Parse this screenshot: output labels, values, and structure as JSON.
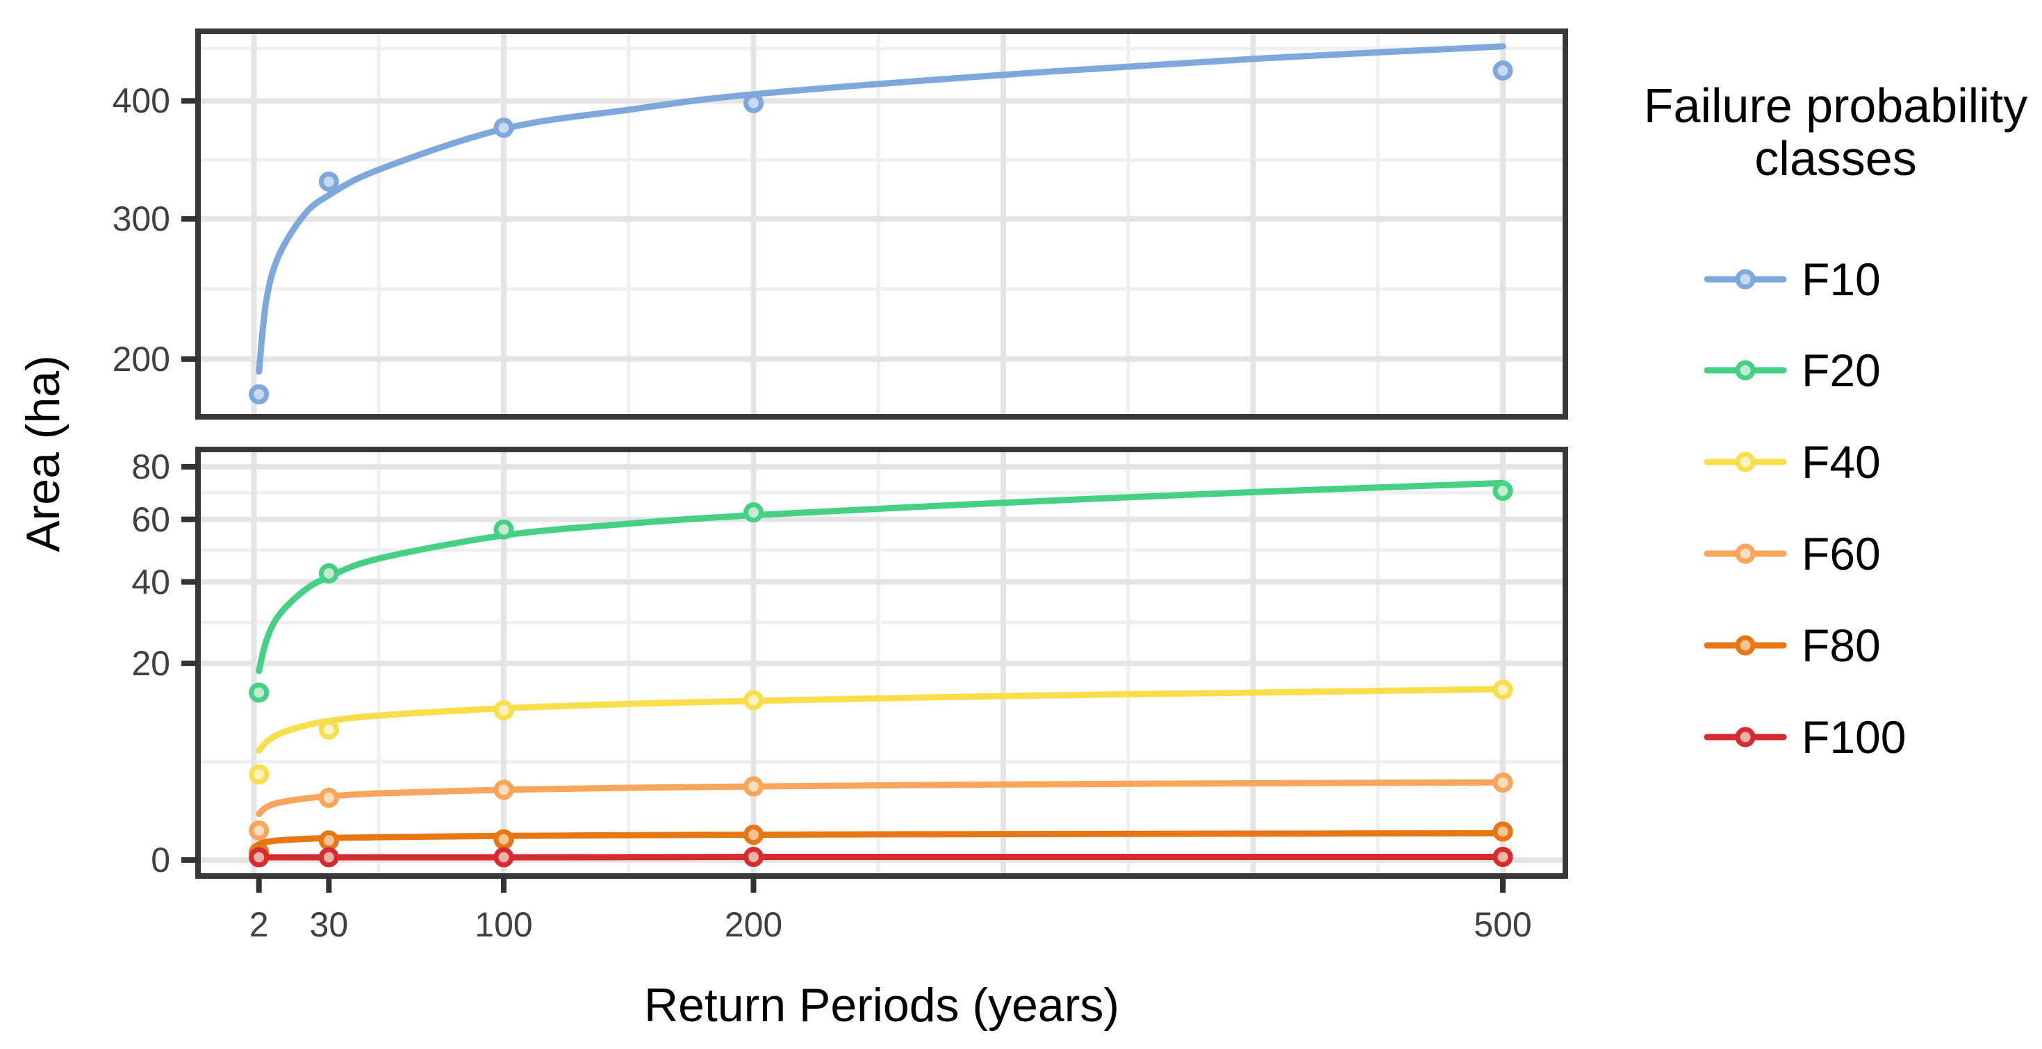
{
  "figure": {
    "background": "#ffffff"
  },
  "axes": {
    "x_title": "Return Periods (years)",
    "y_title": "Area (ha)",
    "x_tick_labels": [
      "2",
      "30",
      "100",
      "200",
      "500"
    ],
    "top_panel_y_tick_labels": [
      "200",
      "300",
      "400"
    ],
    "bottom_panel_y_tick_labels": [
      "0",
      "20",
      "40",
      "60",
      "80"
    ],
    "tick_color": "#333333",
    "border_color": "#383838",
    "grid_major_color": "#E4E4E4",
    "grid_minor_color": "#EFEFEF"
  },
  "legend": {
    "title_line1": "Failure probability",
    "title_line2": "classes",
    "entries": [
      {
        "label": "F10",
        "color": "#7EA7DC",
        "fill": "#C9D9F0"
      },
      {
        "label": "F20",
        "color": "#45D084",
        "fill": "#C2ECD2"
      },
      {
        "label": "F40",
        "color": "#F8DE4B",
        "fill": "#FBF2C4"
      },
      {
        "label": "F60",
        "color": "#F9A55B",
        "fill": "#FCDDBE"
      },
      {
        "label": "F80",
        "color": "#E77614",
        "fill": "#F5C493"
      },
      {
        "label": "F100",
        "color": "#D62C30",
        "fill": "#EFB2A8"
      }
    ]
  },
  "chart_data": {
    "type": "scatter",
    "smooth_lines": true,
    "x_scale": "linear",
    "y_scale": "sqrt",
    "grid": true,
    "legend_position": "right",
    "xlabel": "Return Periods (years)",
    "ylabel": "Area (ha)",
    "x": [
      2,
      30,
      100,
      200,
      500
    ],
    "x_axis_ticks": [
      2,
      30,
      100,
      200,
      500
    ],
    "x_grid_major": [
      0,
      100,
      200,
      300,
      400,
      500
    ],
    "x_grid_minor": [
      50,
      150,
      250,
      350,
      450
    ],
    "curve_x": [
      2,
      5,
      10,
      20,
      30,
      50,
      100,
      150,
      200,
      300,
      400,
      500
    ],
    "panels": [
      {
        "name": "top",
        "ylim": [
          160,
          466
        ],
        "y_ticks": [
          200,
          300,
          400
        ],
        "y_grid_minor": [
          247.5,
          348.2,
          448.9
        ],
        "series": [
          {
            "name": "F10",
            "color": "#7EA7DC",
            "fill": "#C9D9F0",
            "values": [
              178,
              330,
              376,
              398,
              428
            ],
            "curve_v": [
              192,
              240,
              272,
              303,
              319,
              340,
              375,
              392,
              406,
              424,
              439,
              451
            ]
          }
        ]
      },
      {
        "name": "bottom",
        "ylim": [
          0,
          88
        ],
        "y_ticks": [
          0,
          20,
          40,
          60,
          80
        ],
        "y_grid_minor": [
          5,
          29.2,
          49.7,
          69.8
        ],
        "series": [
          {
            "name": "F20",
            "color": "#45D084",
            "fill": "#C2ECD2",
            "values": [
              14.5,
              42.5,
              56.5,
              62.5,
              70.5
            ],
            "curve_v": [
              18.5,
              25,
              31,
              37.5,
              41.5,
              47,
              54.5,
              58.5,
              61.5,
              66,
              70,
              73.5
            ]
          },
          {
            "name": "F40",
            "color": "#F8DE4B",
            "fill": "#FBF2C4",
            "values": [
              3.8,
              8.8,
              11.6,
              13.2,
              15.0
            ],
            "curve_v": [
              6.2,
              7.2,
              8.2,
              9.3,
              10.0,
              10.8,
              11.9,
              12.6,
              13.1,
              13.9,
              14.5,
              15.1
            ]
          },
          {
            "name": "F60",
            "color": "#F9A55B",
            "fill": "#FCDDBE",
            "values": [
              0.45,
              2.0,
              2.55,
              2.8,
              3.1
            ],
            "curve_v": [
              1.1,
              1.45,
              1.7,
              1.95,
              2.1,
              2.3,
              2.55,
              2.7,
              2.8,
              2.95,
              3.05,
              3.12
            ]
          },
          {
            "name": "F80",
            "color": "#E77614",
            "fill": "#F5C493",
            "values": [
              0.03,
              0.2,
              0.22,
              0.33,
              0.42
            ],
            "curve_v": [
              0.13,
              0.17,
              0.2,
              0.23,
              0.25,
              0.27,
              0.3,
              0.32,
              0.33,
              0.35,
              0.36,
              0.37
            ]
          },
          {
            "name": "F100",
            "color": "#D62C30",
            "fill": "#EFB2A8",
            "values": [
              0.004,
              0.004,
              0.004,
              0.005,
              0.005
            ],
            "curve_v": [
              0.004,
              0.004,
              0.004,
              0.004,
              0.004,
              0.004,
              0.004,
              0.0045,
              0.005,
              0.005,
              0.005,
              0.005
            ]
          }
        ]
      }
    ]
  }
}
